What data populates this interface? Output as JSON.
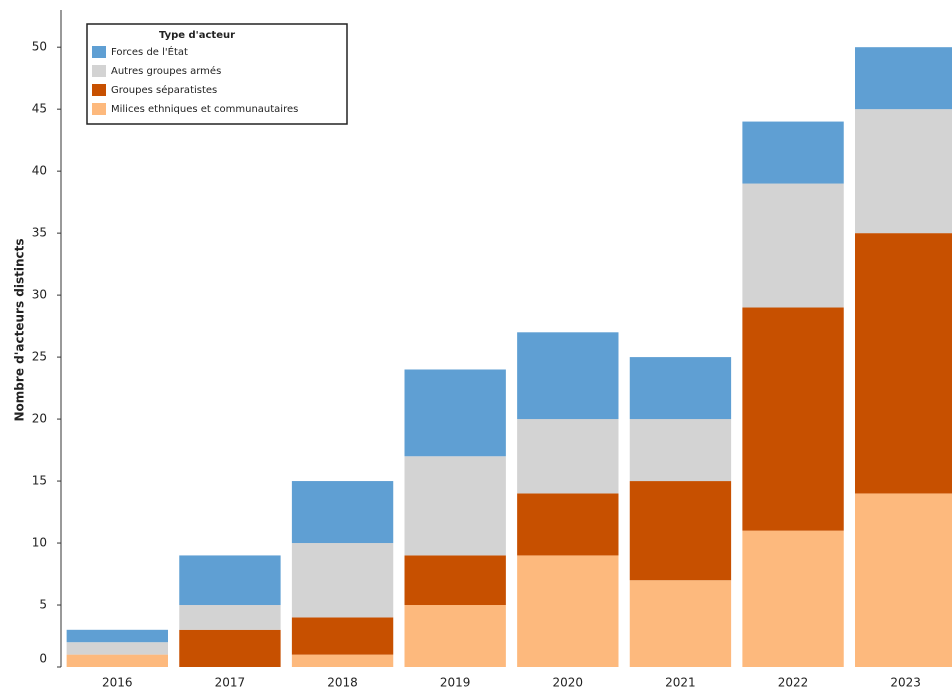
{
  "chart_data": {
    "type": "stacked_bar",
    "ylabel": "Nombre d'acteurs distincts",
    "legend_title": "Type d'acteur",
    "legend": "upper left",
    "categories": [
      "2016",
      "2017",
      "2018",
      "2019",
      "2020",
      "2021",
      "2022",
      "2023"
    ],
    "series": [
      {
        "name": "Milices ethniques et communautaires",
        "color": "#fdb97d",
        "values": [
          1,
          0,
          1,
          5,
          9,
          7,
          11,
          14
        ]
      },
      {
        "name": "Groupes séparatistes",
        "color": "#c75000",
        "values": [
          0,
          3,
          3,
          4,
          5,
          8,
          18,
          21
        ]
      },
      {
        "name": "Autres groupes armés",
        "color": "#d3d3d3",
        "values": [
          1,
          2,
          6,
          8,
          6,
          5,
          10,
          10
        ]
      },
      {
        "name": "Forces de l'État",
        "color": "#5f9fd3",
        "values": [
          1,
          4,
          5,
          7,
          7,
          5,
          5,
          5
        ]
      }
    ],
    "ylim": [
      0,
      53
    ],
    "yticks": [
      0,
      5,
      10,
      15,
      20,
      25,
      30,
      35,
      40,
      45,
      50
    ]
  }
}
